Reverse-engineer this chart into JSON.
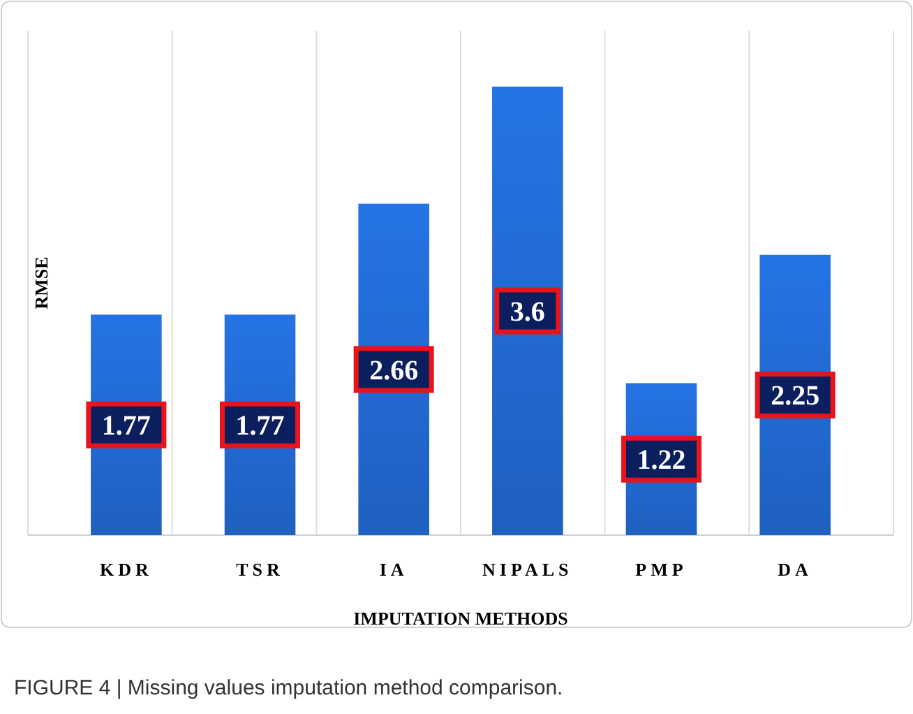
{
  "chart_data": {
    "type": "bar",
    "xlabel": "IMPUTATION METHODS",
    "ylabel": "RMSE",
    "categories": [
      "KDR",
      "TSR",
      "IA",
      "NIPALS",
      "PMP",
      "DA"
    ],
    "values": [
      1.77,
      1.77,
      2.66,
      3.6,
      1.22,
      2.25
    ],
    "color": "#1f60c0",
    "data_labels": true,
    "grid": "x",
    "annotations": [
      "FIGURE 4 | Missing values imputation method comparison."
    ]
  }
}
